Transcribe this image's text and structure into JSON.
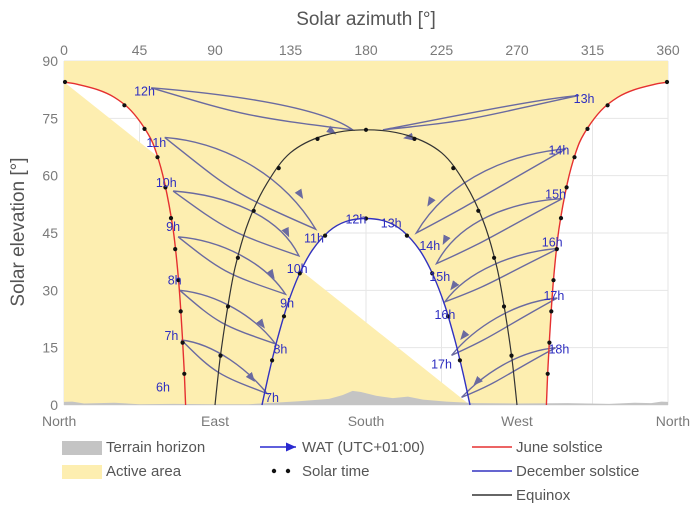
{
  "chart_data": {
    "type": "line",
    "title": "",
    "top_axis_label": "Solar azimuth [°]",
    "ylabel": "Solar elevation [°]",
    "xlim": [
      0,
      360
    ],
    "ylim": [
      0,
      90
    ],
    "top_ticks": [
      "0",
      "45",
      "90",
      "135",
      "180",
      "225",
      "270",
      "315",
      "360"
    ],
    "top_tick_values": [
      0,
      45,
      90,
      135,
      180,
      225,
      270,
      315,
      360
    ],
    "y_ticks": [
      "0",
      "15",
      "30",
      "45",
      "60",
      "75",
      "90"
    ],
    "y_tick_values": [
      0,
      15,
      30,
      45,
      60,
      75,
      90
    ],
    "bottom_labels": [
      "North",
      "East",
      "South",
      "West",
      "North"
    ],
    "bottom_label_values": [
      0,
      90,
      180,
      270,
      360
    ],
    "grid": true,
    "colors": {
      "june": "#e53030",
      "december": "#3232c0",
      "equinox": "#333333",
      "analemma": "#6a6aa0",
      "active": "#fdeeb0",
      "terrain": "#c4c4c4"
    },
    "series": [
      {
        "name": "June solstice",
        "points": [
          [
            0,
            84.5
          ],
          [
            3,
            84.3
          ],
          [
            8,
            83.9
          ],
          [
            20,
            82.5
          ],
          [
            30,
            80.5
          ],
          [
            40,
            77
          ],
          [
            50,
            71
          ],
          [
            55,
            66
          ],
          [
            60,
            58
          ],
          [
            65,
            46
          ],
          [
            68,
            34
          ],
          [
            70,
            22
          ],
          [
            71.5,
            10
          ],
          [
            72.5,
            0
          ]
        ]
      },
      {
        "name": "December solstice",
        "points": [
          [
            118,
            0
          ],
          [
            122,
            8
          ],
          [
            127,
            17
          ],
          [
            133,
            26
          ],
          [
            140,
            34
          ],
          [
            148,
            40.5
          ],
          [
            158,
            45.5
          ],
          [
            168,
            48
          ],
          [
            180,
            48.8
          ],
          [
            192,
            48
          ],
          [
            202,
            45.5
          ],
          [
            212,
            40.5
          ],
          [
            220,
            34
          ],
          [
            227,
            26
          ],
          [
            233,
            17
          ],
          [
            238,
            8
          ],
          [
            242,
            0
          ]
        ]
      },
      {
        "name": "Equinox",
        "points": [
          [
            90,
            0
          ],
          [
            93,
            12
          ],
          [
            97,
            24
          ],
          [
            102,
            36
          ],
          [
            110,
            48
          ],
          [
            121,
            58
          ],
          [
            135,
            66
          ],
          [
            155,
            70.5
          ],
          [
            180,
            72
          ],
          [
            205,
            70.5
          ],
          [
            225,
            66
          ],
          [
            239,
            58
          ],
          [
            250,
            48
          ],
          [
            258,
            36
          ],
          [
            263,
            24
          ],
          [
            267,
            12
          ],
          [
            270,
            0
          ]
        ]
      }
    ],
    "hour_labels": [
      {
        "text": "12h",
        "az": 48,
        "el": 81
      },
      {
        "text": "11h",
        "az": 55,
        "el": 67.5
      },
      {
        "text": "10h",
        "az": 61,
        "el": 57
      },
      {
        "text": "9h",
        "az": 65,
        "el": 45.5
      },
      {
        "text": "8h",
        "az": 66,
        "el": 31.5
      },
      {
        "text": "7h",
        "az": 64,
        "el": 17
      },
      {
        "text": "6h",
        "az": 59,
        "el": 3.5
      },
      {
        "text": "13h",
        "az": 310,
        "el": 79
      },
      {
        "text": "14h",
        "az": 295,
        "el": 65.5
      },
      {
        "text": "15h",
        "az": 293,
        "el": 54
      },
      {
        "text": "16h",
        "az": 291,
        "el": 41.5
      },
      {
        "text": "17h",
        "az": 292,
        "el": 27.5
      },
      {
        "text": "18h",
        "az": 295,
        "el": 13.5
      },
      {
        "text": "12h",
        "az": 174,
        "el": 47.5
      },
      {
        "text": "11h",
        "az": 149,
        "el": 42.5
      },
      {
        "text": "10h",
        "az": 139,
        "el": 34.5
      },
      {
        "text": "9h",
        "az": 133,
        "el": 25.5
      },
      {
        "text": "8h",
        "az": 129,
        "el": 13.5
      },
      {
        "text": "7h",
        "az": 124,
        "el": 0.8
      },
      {
        "text": "13h",
        "az": 195,
        "el": 46.5
      },
      {
        "text": "14h",
        "az": 218,
        "el": 40.5
      },
      {
        "text": "15h",
        "az": 224,
        "el": 32.5
      },
      {
        "text": "16h",
        "az": 227,
        "el": 22.5
      },
      {
        "text": "17h",
        "az": 225,
        "el": 9.5
      }
    ],
    "legend": [
      {
        "label": "Terrain horizon",
        "swatch": "terrain"
      },
      {
        "label": "Active area",
        "swatch": "active"
      },
      {
        "label": "WAT (UTC+01:00)",
        "swatch": "arrow"
      },
      {
        "label": "Solar time",
        "swatch": "dots"
      },
      {
        "label": "June solstice",
        "swatch": "june"
      },
      {
        "label": "December solstice",
        "swatch": "december"
      },
      {
        "label": "Equinox",
        "swatch": "equinox"
      }
    ]
  }
}
